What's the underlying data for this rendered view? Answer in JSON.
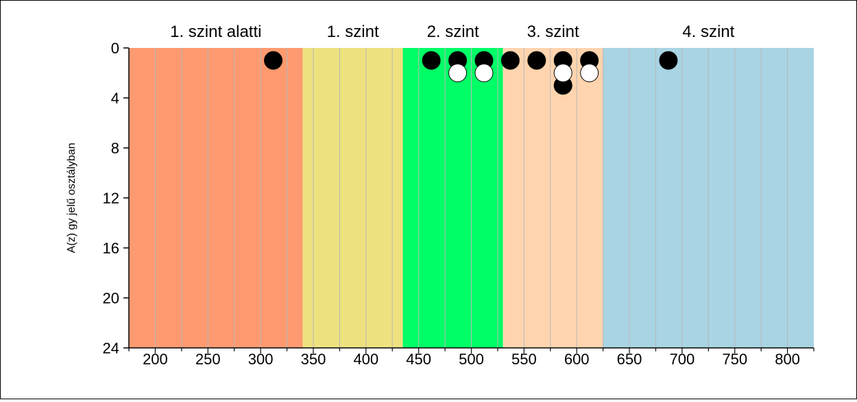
{
  "chart_data": {
    "type": "scatter",
    "title": "",
    "xlabel": "",
    "ylabel": "A(z) gy jelű osztályban",
    "xlim": [
      175,
      825
    ],
    "ylim": [
      24,
      0
    ],
    "y_inverted": true,
    "x_ticks": [
      200,
      250,
      300,
      350,
      400,
      450,
      500,
      550,
      600,
      650,
      700,
      750,
      800
    ],
    "x_minor_step": 25,
    "y_ticks": [
      0,
      4,
      8,
      12,
      16,
      20,
      24
    ],
    "grid": "vertical",
    "bands": [
      {
        "label": "1. szint alatti",
        "from": 175,
        "to": 340,
        "color": "#FF9A70"
      },
      {
        "label": "1. szint",
        "from": 340,
        "to": 435,
        "color": "#EEE180"
      },
      {
        "label": "2. szint",
        "from": 435,
        "to": 530,
        "color": "#00FF66"
      },
      {
        "label": "3. szint",
        "from": 530,
        "to": 625,
        "color": "#FFD4AE"
      },
      {
        "label": "4. szint",
        "from": 625,
        "to": 825,
        "color": "#A8D4E3"
      }
    ],
    "series": [
      {
        "color": "#000000",
        "points": [
          {
            "x": 312,
            "y": 1
          },
          {
            "x": 462,
            "y": 1
          },
          {
            "x": 487,
            "y": 1
          },
          {
            "x": 512,
            "y": 1
          },
          {
            "x": 537,
            "y": 1
          },
          {
            "x": 562,
            "y": 1
          },
          {
            "x": 587,
            "y": 1
          },
          {
            "x": 612,
            "y": 1
          },
          {
            "x": 687,
            "y": 1
          },
          {
            "x": 587,
            "y": 3
          }
        ]
      },
      {
        "color": "#FFFFFF",
        "points": [
          {
            "x": 487,
            "y": 2
          },
          {
            "x": 512,
            "y": 2
          },
          {
            "x": 587,
            "y": 2
          },
          {
            "x": 612,
            "y": 2
          }
        ]
      }
    ]
  }
}
